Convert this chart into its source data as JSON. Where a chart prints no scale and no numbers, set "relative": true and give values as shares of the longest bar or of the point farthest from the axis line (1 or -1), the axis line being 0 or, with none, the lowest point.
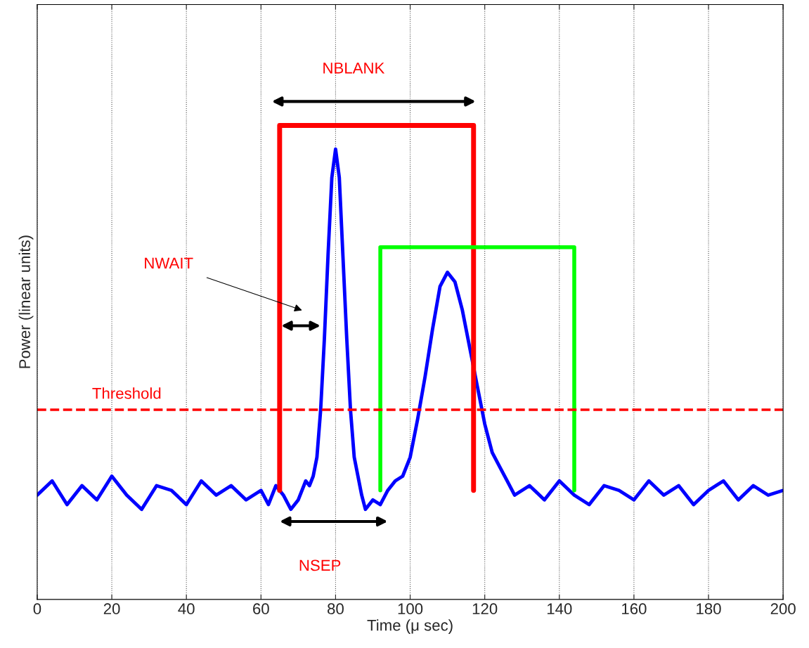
{
  "chart_data": {
    "type": "line",
    "relative": true,
    "xlabel": "Time (μ sec)",
    "ylabel": "Power (linear units)",
    "xlim": [
      0,
      200
    ],
    "xticks": [
      0,
      20,
      40,
      60,
      80,
      100,
      120,
      140,
      160,
      180,
      200
    ],
    "grid": "x",
    "tick_labels": "x",
    "series": [
      {
        "color": "#0000ff",
        "x": [
          0,
          4,
          8,
          12,
          16,
          20,
          24,
          28,
          32,
          36,
          40,
          44,
          48,
          52,
          56,
          60,
          62,
          64,
          66,
          68,
          70,
          72,
          73,
          74,
          75,
          76,
          77,
          78,
          79,
          80,
          81,
          82,
          83,
          84,
          85,
          86,
          87,
          88,
          90,
          92,
          94,
          96,
          98,
          100,
          102,
          104,
          106,
          108,
          110,
          112,
          114,
          116,
          118,
          120,
          122,
          124,
          126,
          128,
          132,
          136,
          140,
          144,
          148,
          152,
          156,
          160,
          164,
          168,
          172,
          176,
          180,
          184,
          188,
          192,
          196,
          200
        ],
        "values": [
          0.22,
          0.25,
          0.2,
          0.24,
          0.21,
          0.26,
          0.22,
          0.19,
          0.24,
          0.23,
          0.2,
          0.25,
          0.22,
          0.24,
          0.21,
          0.23,
          0.2,
          0.24,
          0.22,
          0.19,
          0.21,
          0.25,
          0.24,
          0.26,
          0.3,
          0.4,
          0.55,
          0.73,
          0.89,
          0.95,
          0.89,
          0.72,
          0.55,
          0.4,
          0.3,
          0.26,
          0.22,
          0.19,
          0.21,
          0.2,
          0.23,
          0.25,
          0.26,
          0.3,
          0.38,
          0.47,
          0.57,
          0.66,
          0.69,
          0.67,
          0.61,
          0.53,
          0.45,
          0.37,
          0.31,
          0.28,
          0.25,
          0.22,
          0.24,
          0.21,
          0.25,
          0.22,
          0.2,
          0.24,
          0.23,
          0.21,
          0.25,
          0.22,
          0.24,
          0.2,
          0.23,
          0.25,
          0.21,
          0.24,
          0.22,
          0.23
        ]
      },
      {
        "color": "#ff0000",
        "x": [
          65,
          65,
          117,
          117
        ],
        "values": [
          0.23,
          1.0,
          1.0,
          0.23
        ]
      },
      {
        "color": "#00ff00",
        "x": [
          92,
          92,
          144,
          144
        ],
        "values": [
          0.23,
          0.743,
          0.743,
          0.23
        ]
      }
    ],
    "ref_lines": [
      {
        "axis": "y",
        "value": 0.4,
        "label": "Threshold",
        "color": "#ff0000",
        "line_style": "dashed"
      }
    ],
    "annotations": [
      "NBLANK",
      "NWAIT",
      "NSEP"
    ]
  }
}
